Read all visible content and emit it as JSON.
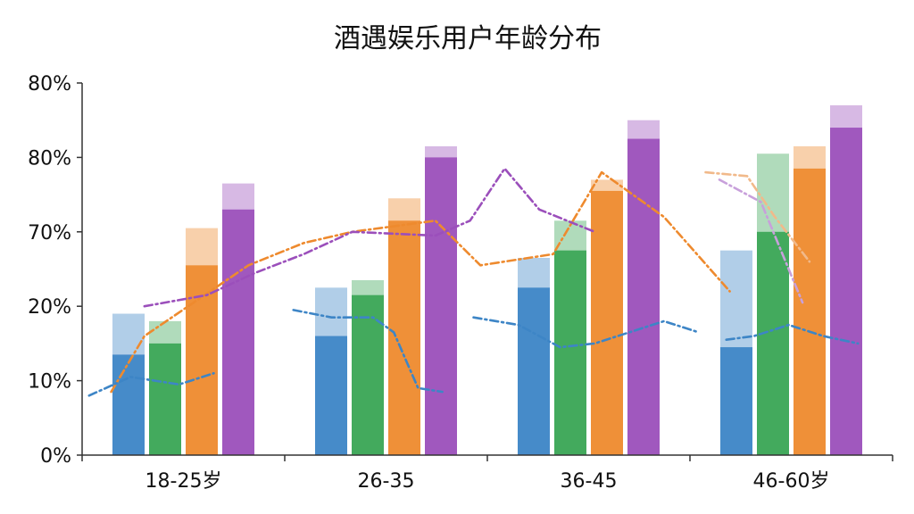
{
  "chart_data": {
    "type": "bar",
    "title": "酒遇娱乐用户年龄分布",
    "xlabel": "",
    "ylabel": "",
    "y_tick_labels": [
      "0%",
      "10%",
      "20%",
      "70%",
      "80%",
      "80%"
    ],
    "categories": [
      "18-25岁",
      "26-35",
      "36-45",
      "46-60岁"
    ],
    "bar_series": [
      {
        "color": "#3d85c6",
        "values": [
          13.5,
          16,
          22.5,
          14.5
        ],
        "overlay_values": [
          19,
          22.5,
          26.5,
          27.5
        ]
      },
      {
        "color": "#3aa655",
        "values": [
          15,
          21.5,
          27.5,
          30
        ],
        "overlay_values": [
          18,
          23.5,
          31.5,
          40.5
        ]
      },
      {
        "color": "#ee8a2e",
        "values": [
          25.5,
          31.5,
          35.5,
          38.5
        ],
        "overlay_values": [
          30.5,
          34.5,
          37,
          41.5
        ]
      },
      {
        "color": "#9b4fbb",
        "values": [
          33,
          40,
          42.5,
          44
        ],
        "overlay_values": [
          36.5,
          41.5,
          45,
          47
        ]
      }
    ],
    "trend_lines": [
      {
        "color": "#ee8a2e",
        "points": [
          [
            0.42,
            8.5
          ],
          [
            0.9,
            16
          ],
          [
            2.4,
            25.5
          ],
          [
            3.2,
            28.5
          ],
          [
            3.9,
            30
          ],
          [
            5.1,
            31.5
          ],
          [
            5.75,
            25.5
          ],
          [
            6.8,
            27
          ],
          [
            7.5,
            38
          ],
          [
            8.4,
            32
          ],
          [
            9.35,
            22
          ]
        ]
      },
      {
        "color": "#9b4fbb",
        "points": [
          [
            0.9,
            20
          ],
          [
            1.8,
            21.5
          ],
          [
            2.5,
            24.5
          ],
          [
            3.2,
            27
          ],
          [
            3.9,
            30
          ],
          [
            5.1,
            29.5
          ],
          [
            5.6,
            31.5
          ],
          [
            6.1,
            38.5
          ],
          [
            6.6,
            33
          ],
          [
            7.4,
            30
          ]
        ]
      },
      {
        "color": "#f1b98a",
        "points": [
          [
            9.0,
            38
          ],
          [
            9.6,
            37.5
          ],
          [
            10.0,
            32
          ],
          [
            10.5,
            26
          ]
        ]
      },
      {
        "color": "#c8a0db",
        "points": [
          [
            9.2,
            37
          ],
          [
            9.8,
            34
          ],
          [
            10.4,
            20.5
          ]
        ]
      },
      {
        "color": "#3d85c6",
        "points": [
          [
            0.1,
            8
          ],
          [
            0.7,
            10.5
          ],
          [
            1.4,
            9.5
          ],
          [
            1.9,
            11
          ]
        ]
      },
      {
        "color": "#3d85c6",
        "points": [
          [
            3.05,
            19.5
          ],
          [
            3.6,
            18.5
          ],
          [
            4.2,
            18.5
          ],
          [
            4.5,
            16.5
          ],
          [
            4.85,
            9
          ],
          [
            5.2,
            8.5
          ]
        ]
      },
      {
        "color": "#3d85c6",
        "points": [
          [
            5.65,
            18.5
          ],
          [
            6.3,
            17.5
          ],
          [
            6.9,
            14.5
          ],
          [
            7.4,
            15
          ],
          [
            7.9,
            16.5
          ],
          [
            8.4,
            18
          ],
          [
            8.9,
            16.5
          ]
        ]
      },
      {
        "color": "#3d85c6",
        "points": [
          [
            9.3,
            15.5
          ],
          [
            9.7,
            16
          ],
          [
            10.2,
            17.5
          ],
          [
            10.7,
            16
          ],
          [
            11.2,
            15
          ]
        ]
      }
    ],
    "ylim": [
      0,
      50
    ],
    "grid": false,
    "legend": "none"
  }
}
